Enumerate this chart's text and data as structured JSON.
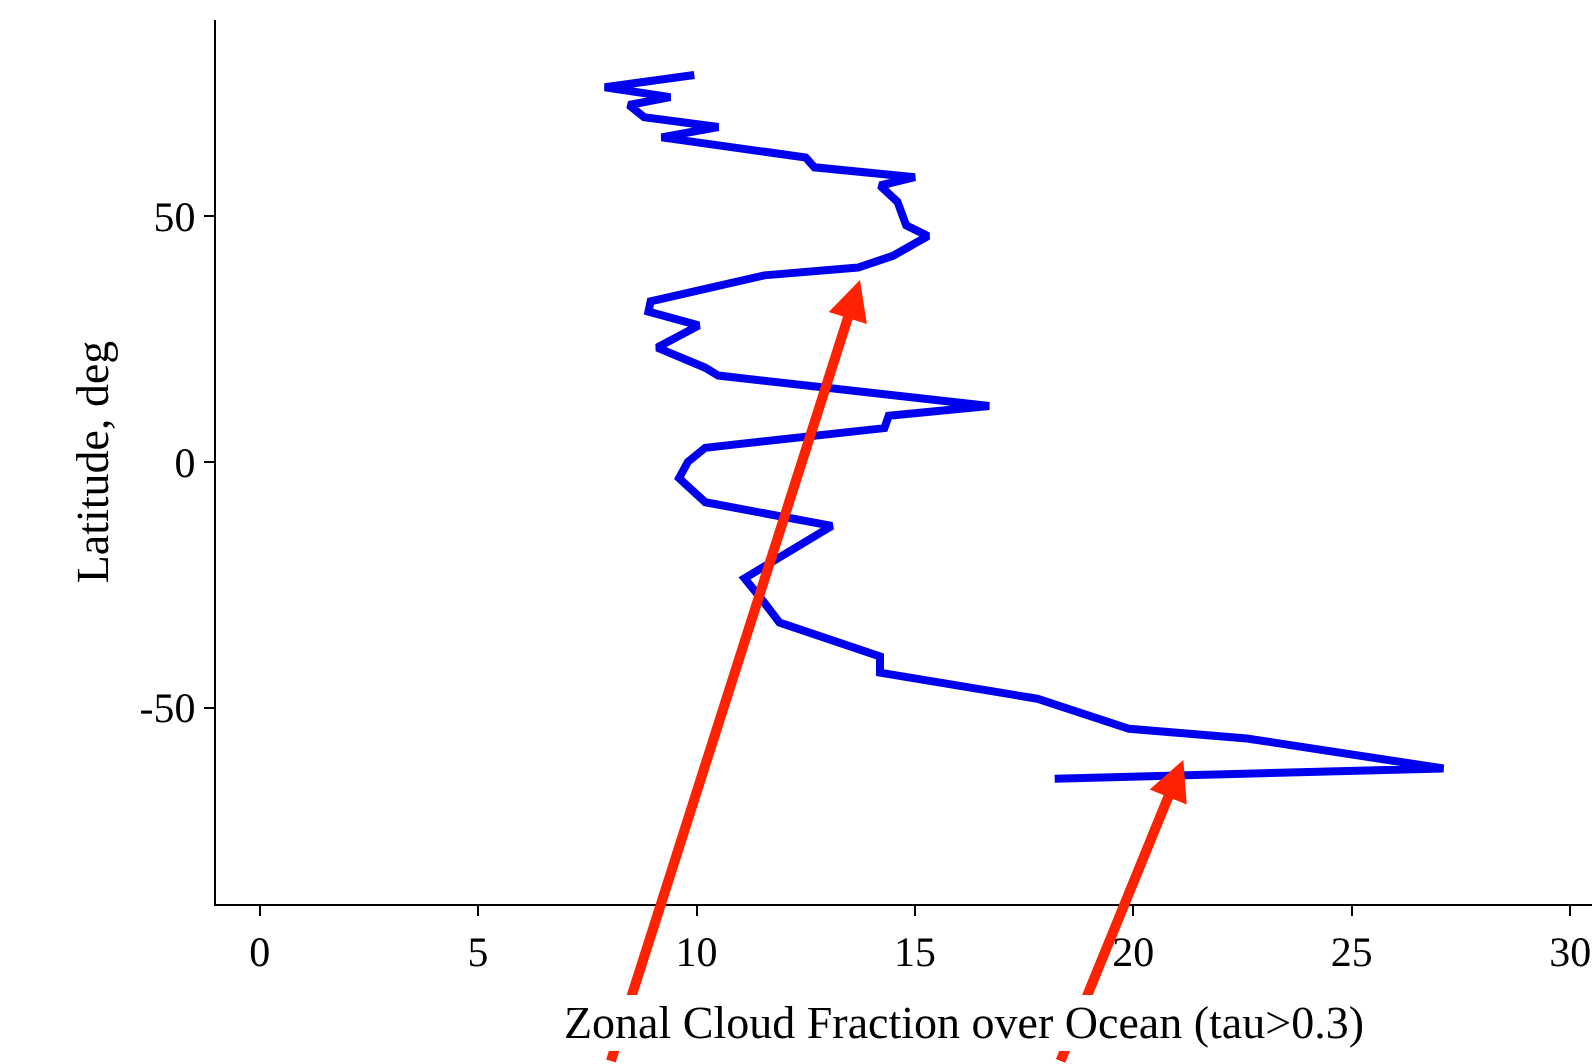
{
  "chart_data": {
    "type": "line",
    "xlabel": "Zonal Cloud Fraction over Ocean (tau>0.3)",
    "ylabel": "Latitude, deg",
    "xlim": [
      -1,
      30.5
    ],
    "xticks": [
      0,
      5,
      10,
      15,
      20,
      25,
      30
    ],
    "ylim": [
      -90,
      90
    ],
    "yticks": [
      -50,
      0,
      50
    ],
    "series": [
      {
        "color": "#0000ee",
        "line_style": "solid",
        "x": [
          9.95,
          7.9,
          9.4,
          8.45,
          8.8,
          10.5,
          9.2,
          12.5,
          12.7,
          15.0,
          14.2,
          14.6,
          14.8,
          15.3,
          14.5,
          13.7,
          11.55,
          8.95,
          8.9,
          10.05,
          9.1,
          10.2,
          10.5,
          16.7,
          14.4,
          14.3,
          10.2,
          9.8,
          9.6,
          10.2,
          13.1,
          11.1,
          11.55,
          11.9,
          14.2,
          14.2,
          17.8,
          19.9,
          22.6,
          27.1,
          18.2
        ],
        "values": [
          78.8,
          76.3,
          74.3,
          72.7,
          70.2,
          68.2,
          66.1,
          62,
          60,
          58,
          56.3,
          53,
          48.2,
          46,
          42,
          39.6,
          38,
          32.7,
          30.6,
          27.8,
          23.3,
          19.2,
          17.6,
          11.4,
          9.4,
          6.9,
          2.9,
          0,
          -3.3,
          -8.2,
          -13,
          -23.7,
          -28.6,
          -32.7,
          -39.6,
          -42.9,
          -48.2,
          -54.3,
          -56.3,
          -62.4,
          -64.5
        ]
      }
    ]
  }
}
